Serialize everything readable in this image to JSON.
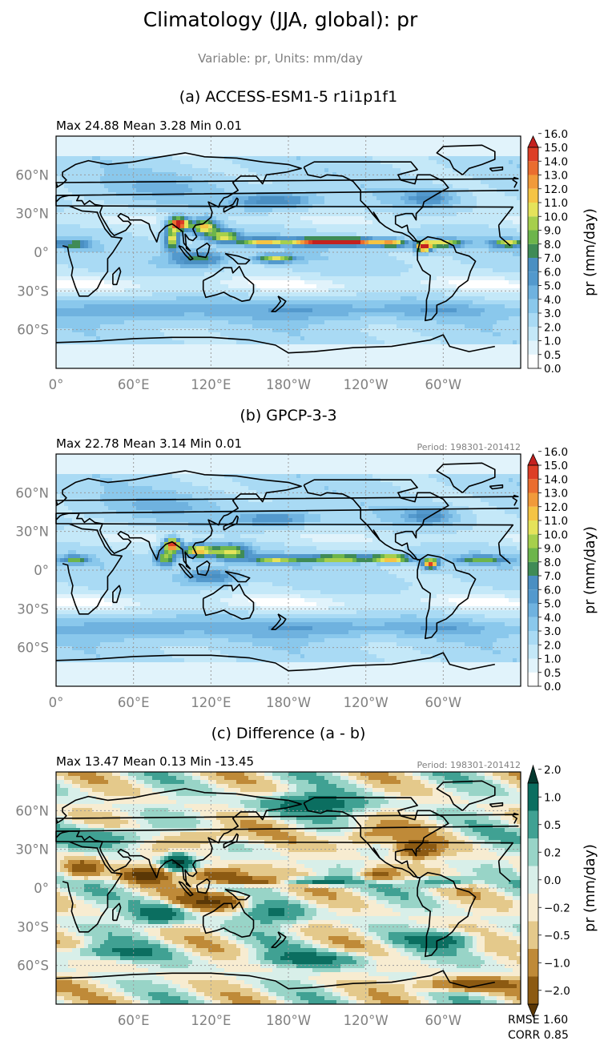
{
  "figure": {
    "title": "Climatology (JJA, global): pr",
    "subtitle": "Variable: pr, Units: mm/day"
  },
  "panels": [
    {
      "id": "a",
      "title": "(a) ACCESS-ESM1-5 r1i1p1f1",
      "stats": "Max 24.88 Mean 3.28 Min 0.01",
      "period": "",
      "colorbar_label": "pr (mm/day)",
      "colorbar_ticks": [
        "0.0",
        "0.5",
        "1.0",
        "2.0",
        "3.0",
        "4.0",
        "5.0",
        "6.0",
        "7.0",
        "8.0",
        "9.0",
        "10.0",
        "11.0",
        "12.0",
        "13.0",
        "14.0",
        "15.0",
        "16.0"
      ],
      "colormap": "precip",
      "show_lon_0": true
    },
    {
      "id": "b",
      "title": "(b) GPCP-3-3",
      "stats": "Max 22.78 Mean 3.14 Min 0.01",
      "period": "Period: 198301-201412",
      "colorbar_label": "pr (mm/day)",
      "colorbar_ticks": [
        "0.0",
        "0.5",
        "1.0",
        "2.0",
        "3.0",
        "4.0",
        "5.0",
        "6.0",
        "7.0",
        "8.0",
        "9.0",
        "10.0",
        "11.0",
        "12.0",
        "13.0",
        "14.0",
        "15.0",
        "16.0"
      ],
      "colormap": "precip",
      "show_lon_0": true
    },
    {
      "id": "c",
      "title": "(c) Difference (a - b)",
      "stats": "Max 13.47 Mean 0.13 Min -13.45",
      "period": "Period: 198301-201412",
      "colorbar_label": "pr (mm/day)",
      "colorbar_ticks": [
        "−2.0",
        "−1.0",
        "−0.5",
        "−0.2",
        "0.0",
        "0.2",
        "0.5",
        "1.0",
        "2.0"
      ],
      "colormap": "diff",
      "show_lon_0": false
    }
  ],
  "metrics": {
    "rmse": "RMSE 1.60",
    "corr": "CORR 0.85"
  },
  "chart_data": [
    {
      "type": "heatmap",
      "title": "(a) ACCESS-ESM1-5 r1i1p1f1",
      "x_ticks": [
        "0°",
        "60°E",
        "120°E",
        "180°W",
        "120°W",
        "60°W"
      ],
      "y_ticks": [
        "60°N",
        "30°N",
        "0°",
        "30°S",
        "60°S"
      ],
      "levels": [
        0.0,
        0.5,
        1.0,
        2.0,
        3.0,
        4.0,
        5.0,
        6.0,
        7.0,
        8.0,
        9.0,
        10.0,
        11.0,
        12.0,
        13.0,
        14.0,
        15.0,
        16.0
      ],
      "max": 24.88,
      "mean": 3.28,
      "min": 0.01,
      "units": "mm/day"
    },
    {
      "type": "heatmap",
      "title": "(b) GPCP-3-3",
      "x_ticks": [
        "0°",
        "60°E",
        "120°E",
        "180°W",
        "120°W",
        "60°W"
      ],
      "y_ticks": [
        "60°N",
        "30°N",
        "0°",
        "30°S",
        "60°S"
      ],
      "levels": [
        0.0,
        0.5,
        1.0,
        2.0,
        3.0,
        4.0,
        5.0,
        6.0,
        7.0,
        8.0,
        9.0,
        10.0,
        11.0,
        12.0,
        13.0,
        14.0,
        15.0,
        16.0
      ],
      "max": 22.78,
      "mean": 3.14,
      "min": 0.01,
      "units": "mm/day"
    },
    {
      "type": "heatmap",
      "title": "(c) Difference (a - b)",
      "x_ticks": [
        "60°E",
        "120°E",
        "180°W",
        "120°W",
        "60°W"
      ],
      "y_ticks": [
        "60°N",
        "30°N",
        "0°",
        "30°S",
        "60°S"
      ],
      "levels": [
        -2.0,
        -1.0,
        -0.5,
        -0.2,
        0.0,
        0.2,
        0.5,
        1.0,
        2.0
      ],
      "max": 13.47,
      "mean": 0.13,
      "min": -13.45,
      "rmse": 1.6,
      "corr": 0.85,
      "units": "mm/day"
    }
  ],
  "colors": {
    "precip": [
      "#ffffff",
      "#e1f3fb",
      "#c4e8f8",
      "#a9daf4",
      "#8ac8ec",
      "#6fb2df",
      "#5399cd",
      "#4a8fc2",
      "#3f8b56",
      "#6db54b",
      "#a6cf4c",
      "#e5e35a",
      "#f5c444",
      "#f19a3a",
      "#ea6d2f",
      "#dd3e26",
      "#c4211f"
    ],
    "diff": [
      "#5a3706",
      "#8c5a12",
      "#bf8a38",
      "#e4c98b",
      "#f7ecd1",
      "#d8efe9",
      "#98d4c7",
      "#40a193",
      "#0b6e60",
      "#04382e"
    ]
  }
}
